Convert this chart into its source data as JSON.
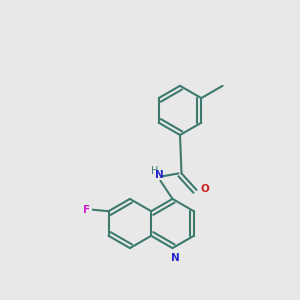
{
  "background_color": "#e8e8e8",
  "bond_color": "#3d7a6e",
  "nitrogen_color": "#2525cc",
  "oxygen_color": "#cc2020",
  "fluorine_color": "#cc22cc",
  "lw": 1.5,
  "dpi": 100,
  "figsize": [
    3.0,
    3.0
  ],
  "xlim": [
    0.0,
    1.0
  ],
  "ylim": [
    0.0,
    1.0
  ],
  "bl": 0.085
}
